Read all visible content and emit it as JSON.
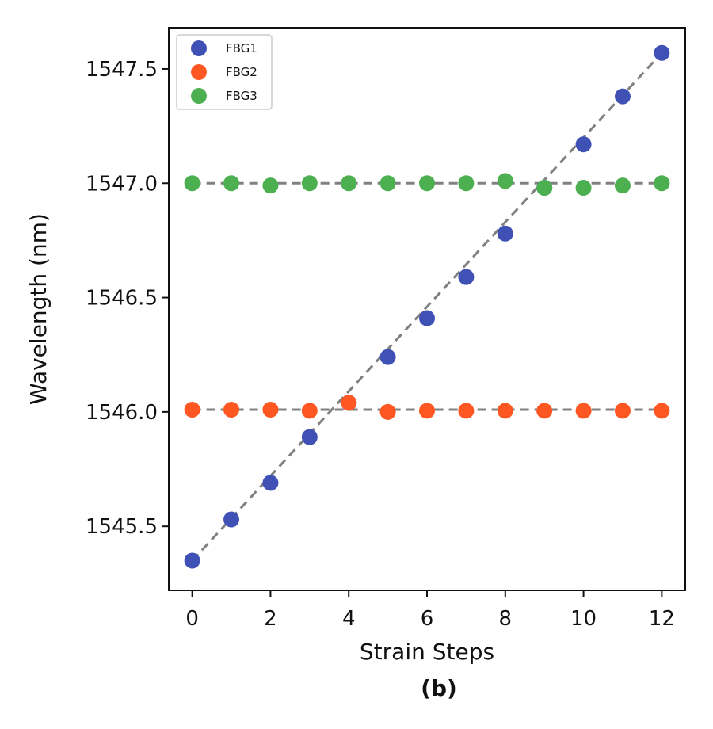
{
  "chart_data": {
    "type": "scatter",
    "title": "",
    "xlabel": "Strain Steps",
    "ylabel": "Wavelength (nm)",
    "caption": "(b)",
    "xlim": [
      -0.6,
      12.6
    ],
    "ylim": [
      1545.22,
      1547.68
    ],
    "xticks": [
      0,
      2,
      4,
      6,
      8,
      10,
      12
    ],
    "xtick_labels": [
      "0",
      "2",
      "4",
      "6",
      "8",
      "10",
      "12"
    ],
    "yticks": [
      1545.5,
      1546.0,
      1546.5,
      1547.0,
      1547.5
    ],
    "ytick_labels": [
      "1545.5",
      "1546.0",
      "1546.5",
      "1547.0",
      "1547.5"
    ],
    "grid": false,
    "legend_position": "top-left",
    "x": [
      0,
      1,
      2,
      3,
      4,
      5,
      6,
      7,
      8,
      9,
      10,
      11,
      12
    ],
    "series": [
      {
        "name": "FBG1",
        "color": "#3f51b5",
        "values": [
          1545.35,
          1545.53,
          1545.69,
          1545.89,
          1546.04,
          1546.24,
          1546.41,
          1546.59,
          1546.78,
          1546.98,
          1547.17,
          1547.38,
          1547.57
        ],
        "fit": [
          1545.35,
          1547.57
        ]
      },
      {
        "name": "FBG2",
        "color": "#ff5722",
        "values": [
          1546.01,
          1546.01,
          1546.01,
          1546.005,
          1546.04,
          1546.0,
          1546.005,
          1546.005,
          1546.005,
          1546.005,
          1546.005,
          1546.005,
          1546.005
        ],
        "fit": [
          1546.01,
          1546.01
        ]
      },
      {
        "name": "FBG3",
        "color": "#4caf50",
        "values": [
          1547.0,
          1547.0,
          1546.99,
          1547.0,
          1547.0,
          1547.0,
          1547.0,
          1547.0,
          1547.01,
          1546.98,
          1546.98,
          1546.99,
          1547.0
        ],
        "fit": [
          1547.0,
          1547.0
        ]
      }
    ],
    "fit_line_color": "#808080"
  }
}
